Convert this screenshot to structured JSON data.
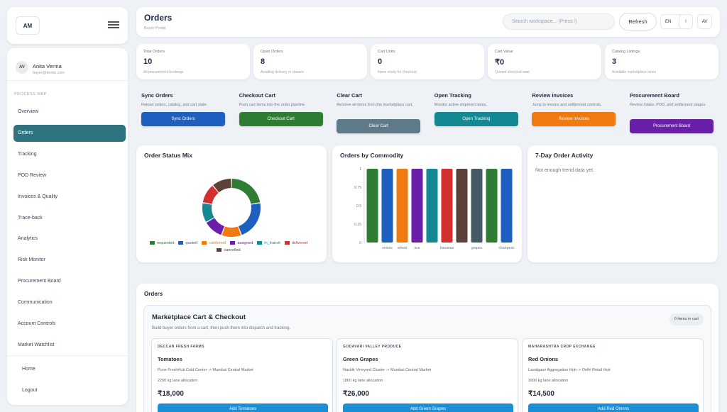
{
  "brand": {
    "initials": "AM"
  },
  "user": {
    "initials": "AV",
    "name": "Anita Verma",
    "email": "buyer@demo.com"
  },
  "sidebar": {
    "section_label": "PROCESS MAP",
    "items": [
      {
        "label": "Overview"
      },
      {
        "label": "Orders",
        "active": true
      },
      {
        "label": "Tracking"
      },
      {
        "label": "POD Review"
      },
      {
        "label": "Invoices & Quality"
      },
      {
        "label": "Trace-back"
      },
      {
        "label": "Analytics"
      },
      {
        "label": "Risk Monitor"
      },
      {
        "label": "Procurement Board"
      },
      {
        "label": "Communication"
      },
      {
        "label": "Account Controls"
      },
      {
        "label": "Market Watchlist"
      }
    ],
    "footer_items": [
      {
        "label": "Home"
      },
      {
        "label": "Logout"
      }
    ]
  },
  "header": {
    "title": "Orders",
    "subtitle": "Buyer Portal",
    "search_placeholder": "Search workspace... (Press /)",
    "refresh_label": "Refresh",
    "lang_label": "EN",
    "currency_label": "₹",
    "alert_label": "!",
    "avatar_initials": "AV"
  },
  "stats": [
    {
      "label": "Total Orders",
      "value": "10",
      "desc": "All procurement bookings"
    },
    {
      "label": "Open Orders",
      "value": "8",
      "desc": "Awaiting delivery or closure"
    },
    {
      "label": "Cart Units",
      "value": "0",
      "desc": "Items ready for checkout"
    },
    {
      "label": "Cart Value",
      "value": "₹0",
      "desc": "Quoted checkout total"
    },
    {
      "label": "Catalog Listings",
      "value": "3",
      "desc": "Available marketplace lanes"
    }
  ],
  "actions": [
    {
      "title": "Sync Orders",
      "desc": "Reload orders, catalog, and cart state.",
      "button": "Sync Orders",
      "color": "#1f5fbf"
    },
    {
      "title": "Checkout Cart",
      "desc": "Push cart items into the order pipeline.",
      "button": "Checkout Cart",
      "color": "#2e7d32"
    },
    {
      "title": "Clear Cart",
      "desc": "Remove all items from the marketplace cart.",
      "button": "Clear Cart",
      "color": "#5f7a89"
    },
    {
      "title": "Open Tracking",
      "desc": "Monitor active shipment lanes.",
      "button": "Open Tracking",
      "color": "#138a93"
    },
    {
      "title": "Review Invoices",
      "desc": "Jump to invoice and settlement controls.",
      "button": "Review Invoices",
      "color": "#f07a10"
    },
    {
      "title": "Procurement Board",
      "desc": "Review intake, POD, and settlement stages.",
      "button": "Procurement Board",
      "color": "#6a1fa8"
    }
  ],
  "chart_data": [
    {
      "type": "pie",
      "title": "Order Status Mix",
      "categories": [
        "requested",
        "quoted",
        "confirmed",
        "assigned",
        "in_transit",
        "delivered",
        "cancelled"
      ],
      "values": [
        2,
        2,
        1,
        1,
        1,
        1,
        1
      ],
      "colors": [
        "#2e7d32",
        "#1f5fbf",
        "#f07a10",
        "#6a1fa8",
        "#138a93",
        "#d32f2f",
        "#5d4037"
      ],
      "legend": "bottom"
    },
    {
      "type": "bar",
      "title": "Orders by Commodity",
      "categories": [
        "",
        "onions",
        "wheat",
        "rice",
        "",
        "bananas",
        "",
        "grapes",
        "",
        "chickpeas"
      ],
      "values": [
        1,
        1,
        1,
        1,
        1,
        1,
        1,
        1,
        1,
        1
      ],
      "colors": [
        "#2e7d32",
        "#1f5fbf",
        "#f07a10",
        "#6a1fa8",
        "#138a93",
        "#d32f2f",
        "#5d4037",
        "#455a64",
        "#2e7d32",
        "#1f5fbf"
      ],
      "ylim": [
        0,
        1
      ],
      "yticks": [
        "0",
        "0.25",
        "0.5",
        "0.75",
        "1"
      ],
      "grid": true
    }
  ],
  "activity": {
    "title": "7-Day Order Activity",
    "message": "Not enough trend data yet."
  },
  "orders": {
    "section_title": "Orders",
    "market_title": "Marketplace Cart & Checkout",
    "market_sub": "Build buyer orders from a cart, then push them into dispatch and tracking.",
    "cart_badge": "0 items in cart",
    "products": [
      {
        "seller": "DECCAN FRESH FARMS",
        "name": "Tomatoes",
        "route": "Pune FreshHub Cold Center -> Mumbai Central Market",
        "alloc": "2200 kg lane allocation",
        "price": "₹18,000",
        "button": "Add Tomatoes"
      },
      {
        "seller": "GODAVARI VALLEY PRODUCE",
        "name": "Green Grapes",
        "route": "Nashik Vineyard Cluster -> Mumbai Central Market",
        "alloc": "1800 kg lane allocation",
        "price": "₹26,000",
        "button": "Add Green Grapes"
      },
      {
        "seller": "MAHARASHTRA CROP EXCHANGE",
        "name": "Red Onions",
        "route": "Lasalgaon Aggregation Hub -> Delhi Retail Hub",
        "alloc": "3000 kg lane allocation",
        "price": "₹14,500",
        "button": "Add Red Onions"
      }
    ]
  }
}
